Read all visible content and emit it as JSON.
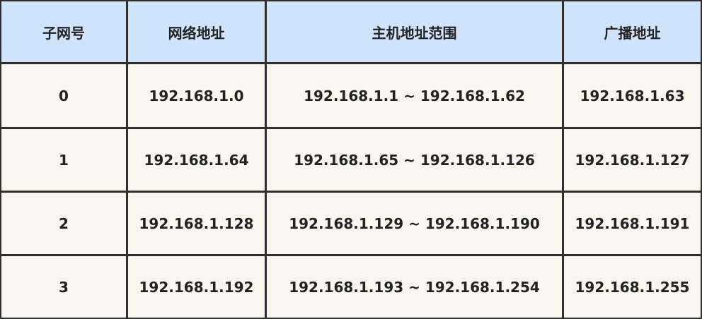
{
  "table": {
    "header": [
      "子网号",
      "网络地址",
      "主机地址范围",
      "广播地址"
    ],
    "rows": [
      [
        "0",
        "192.168.1.0",
        "192.168.1.1 ~ 192.168.1.62",
        "192.168.1.63"
      ],
      [
        "1",
        "192.168.1.64",
        "192.168.1.65 ~ 192.168.1.126",
        "192.168.1.127"
      ],
      [
        "2",
        "192.168.1.128",
        "192.168.1.129 ~ 192.168.1.190",
        "192.168.1.191"
      ],
      [
        "3",
        "192.168.1.192",
        "192.168.1.193 ~ 192.168.1.254",
        "192.168.1.255"
      ]
    ]
  }
}
